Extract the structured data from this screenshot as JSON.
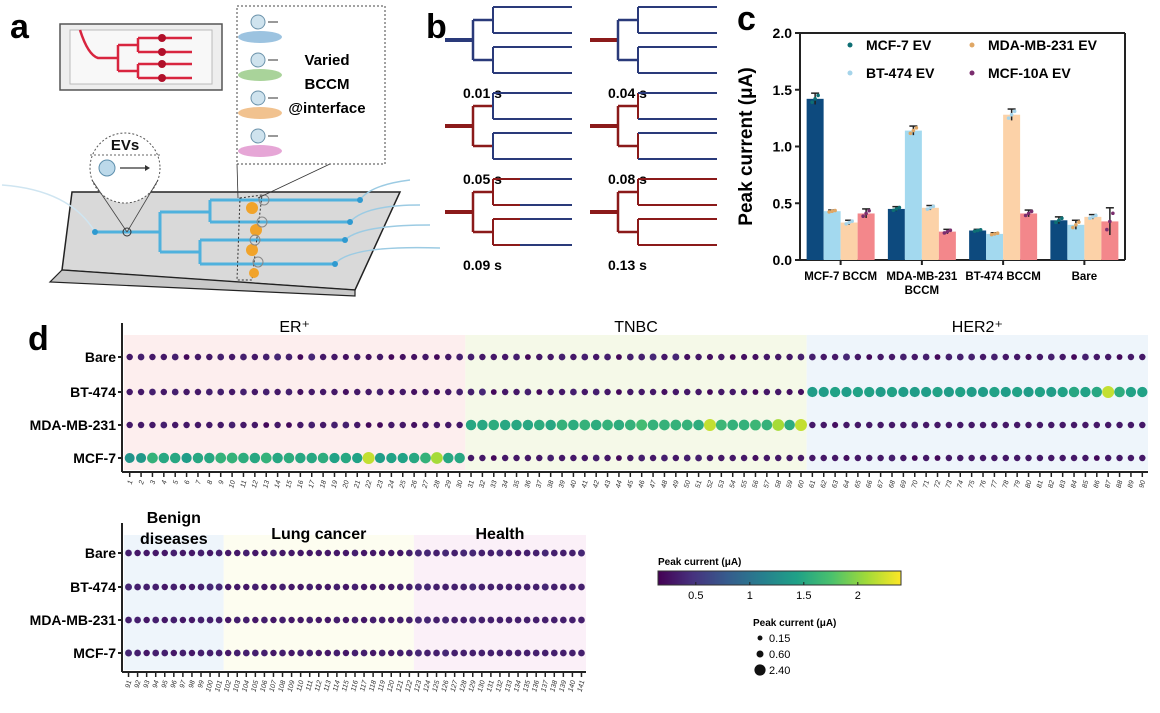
{
  "panel_labels": {
    "a": "a",
    "b": "b",
    "c": "c",
    "d": "d"
  },
  "panel_a": {
    "evs_label": "EVs",
    "interface_lines": [
      "Varied",
      "BCCM",
      "@interface"
    ],
    "interface_colors": [
      "#9cc3e0",
      "#a9d39a",
      "#f1c28f",
      "#e6a6d6"
    ]
  },
  "panel_b": {
    "frames": [
      {
        "time": "0.01 s",
        "filled_stage": 0
      },
      {
        "time": "0.04 s",
        "filled_stage": 1
      },
      {
        "time": "0.05 s",
        "filled_stage": 2
      },
      {
        "time": "0.08 s",
        "filled_stage": 3
      },
      {
        "time": "0.09 s",
        "filled_stage": 4
      },
      {
        "time": "0.13 s",
        "filled_stage": 5
      }
    ],
    "colors": {
      "empty": "#2a3a7a",
      "filled": "#8b1a1a"
    }
  },
  "chart_data": [
    {
      "type": "bar",
      "ylabel": "Peak current (μA)",
      "ylim": [
        0,
        2.0
      ],
      "yticks": [
        "0.0",
        "0.5",
        "1.0",
        "1.5",
        "2.0"
      ],
      "categories": [
        "MCF-7 BCCM",
        "MDA-MB-231|BCCM",
        "BT-474 BCCM",
        "Bare"
      ],
      "legend_placement": "top",
      "series": [
        {
          "name": "MCF-7 EV",
          "color": "#0d4a7e",
          "dot": "#0e6f74",
          "values": [
            1.42,
            0.45,
            0.26,
            0.35
          ],
          "err": [
            0.05,
            0.02,
            0.01,
            0.03
          ]
        },
        {
          "name": "MDA-MB-231 EV",
          "color": "#a3d9ef",
          "dot": "#e0a765",
          "values": [
            0.43,
            1.14,
            0.23,
            0.31
          ],
          "err": [
            0.01,
            0.04,
            0.01,
            0.04
          ]
        },
        {
          "name": "BT-474 EV",
          "color": "#fcd2a8",
          "dot": "#a5d4ea",
          "values": [
            0.33,
            0.46,
            1.28,
            0.38
          ],
          "err": [
            0.02,
            0.02,
            0.05,
            0.02
          ]
        },
        {
          "name": "MCF-10A EV",
          "color": "#f3878b",
          "dot": "#7a2d6e",
          "values": [
            0.41,
            0.25,
            0.41,
            0.34
          ],
          "err": [
            0.04,
            0.02,
            0.03,
            0.12
          ]
        }
      ]
    },
    {
      "type": "bubble-heatmap",
      "rows": [
        "Bare",
        "BT-474",
        "MDA-MB-231",
        "MCF-7"
      ],
      "colorbar": {
        "label": "Peak current (μA)",
        "ticks": [
          "0.5",
          "1",
          "1.5",
          "2"
        ],
        "range": [
          0.15,
          2.4
        ],
        "colormap": "viridis"
      },
      "size_legend": {
        "label": "Peak current (μA)",
        "values": [
          "0.15",
          "0.60",
          "2.40"
        ]
      },
      "panels": [
        {
          "samples": [
            1,
            90
          ],
          "groups": [
            {
              "label": "ER⁺",
              "range": [
                1,
                30
              ],
              "bg": "#fdeeee"
            },
            {
              "label": "TNBC",
              "range": [
                31,
                60
              ],
              "bg": "#f5f9e8"
            },
            {
              "label": "HER2⁺",
              "range": [
                61,
                90
              ],
              "bg": "#eef5fb"
            }
          ],
          "values": {
            "Bare": [
              0.3,
              0.35,
              0.3,
              0.3,
              0.35,
              0.2,
              0.3,
              0.3,
              0.35,
              0.3,
              0.35,
              0.3,
              0.35,
              0.4,
              0.35,
              0.2,
              0.4,
              0.3,
              0.3,
              0.25,
              0.3,
              0.25,
              0.3,
              0.2,
              0.25,
              0.25,
              0.3,
              0.2,
              0.3,
              0.35,
              0.35,
              0.3,
              0.3,
              0.3,
              0.35,
              0.2,
              0.3,
              0.3,
              0.35,
              0.3,
              0.35,
              0.3,
              0.35,
              0.2,
              0.35,
              0.35,
              0.4,
              0.3,
              0.4,
              0.25,
              0.3,
              0.25,
              0.3,
              0.2,
              0.25,
              0.25,
              0.3,
              0.3,
              0.3,
              0.35,
              0.35,
              0.3,
              0.3,
              0.4,
              0.3,
              0.2,
              0.3,
              0.3,
              0.35,
              0.3,
              0.35,
              0.2,
              0.35,
              0.35,
              0.35,
              0.3,
              0.35,
              0.3,
              0.3,
              0.25,
              0.3,
              0.35,
              0.3,
              0.2,
              0.35,
              0.3,
              0.3,
              0.2,
              0.3,
              0.3
            ],
            "BT-474": [
              0.3,
              0.3,
              0.35,
              0.3,
              0.35,
              0.3,
              0.3,
              0.35,
              0.35,
              0.3,
              0.35,
              0.3,
              0.35,
              0.3,
              0.35,
              0.25,
              0.3,
              0.3,
              0.3,
              0.25,
              0.3,
              0.3,
              0.35,
              0.25,
              0.3,
              0.25,
              0.3,
              0.25,
              0.3,
              0.35,
              0.35,
              0.4,
              0.2,
              0.3,
              0.3,
              0.35,
              0.2,
              0.3,
              0.3,
              0.35,
              0.3,
              0.35,
              0.3,
              0.2,
              0.3,
              0.3,
              0.3,
              0.25,
              0.3,
              0.3,
              0.3,
              0.2,
              0.3,
              0.3,
              0.3,
              0.2,
              0.3,
              0.3,
              0.25,
              0.25,
              1.4,
              1.4,
              1.45,
              1.4,
              1.45,
              1.45,
              1.4,
              1.45,
              1.4,
              1.4,
              1.4,
              1.45,
              1.4,
              1.45,
              1.4,
              1.4,
              1.45,
              1.4,
              1.45,
              1.4,
              1.45,
              1.4,
              1.45,
              1.5,
              1.45,
              1.5,
              2.2,
              1.55,
              1.45,
              1.45
            ],
            "MDA-MB-231": [
              0.3,
              0.3,
              0.3,
              0.35,
              0.3,
              0.3,
              0.3,
              0.3,
              0.3,
              0.35,
              0.3,
              0.3,
              0.2,
              0.3,
              0.2,
              0.3,
              0.35,
              0.3,
              0.35,
              0.35,
              0.3,
              0.2,
              0.2,
              0.3,
              0.3,
              0.25,
              0.3,
              0.3,
              0.3,
              0.3,
              1.5,
              1.5,
              1.55,
              1.5,
              1.5,
              1.5,
              1.55,
              1.5,
              1.6,
              1.55,
              1.6,
              1.55,
              1.6,
              1.55,
              1.6,
              1.7,
              1.6,
              1.6,
              1.6,
              1.6,
              1.55,
              2.2,
              1.65,
              1.6,
              1.6,
              1.65,
              1.6,
              2.1,
              1.55,
              2.2,
              0.3,
              0.3,
              0.25,
              0.3,
              0.3,
              0.3,
              0.3,
              0.3,
              0.3,
              0.35,
              0.3,
              0.3,
              0.3,
              0.3,
              0.3,
              0.3,
              0.3,
              0.3,
              0.3,
              0.3,
              0.3,
              0.3,
              0.3,
              0.3,
              0.3,
              0.3,
              0.3,
              0.3,
              0.3,
              0.3
            ],
            "MCF-7": [
              1.3,
              1.35,
              1.6,
              1.5,
              1.5,
              1.4,
              1.5,
              1.5,
              1.6,
              1.6,
              1.55,
              1.5,
              1.6,
              1.5,
              1.55,
              1.5,
              1.5,
              1.55,
              1.45,
              1.5,
              1.45,
              2.2,
              1.4,
              1.45,
              1.45,
              1.5,
              1.6,
              2.1,
              1.5,
              1.5,
              0.3,
              0.3,
              0.2,
              0.3,
              0.3,
              0.3,
              0.3,
              0.35,
              0.3,
              0.3,
              0.3,
              0.35,
              0.3,
              0.2,
              0.3,
              0.35,
              0.3,
              0.35,
              0.3,
              0.35,
              0.35,
              0.3,
              0.3,
              0.3,
              0.3,
              0.25,
              0.3,
              0.3,
              0.3,
              0.3,
              0.3,
              0.3,
              0.3,
              0.25,
              0.3,
              0.3,
              0.3,
              0.35,
              0.3,
              0.2,
              0.3,
              0.2,
              0.3,
              0.3,
              0.3,
              0.3,
              0.3,
              0.3,
              0.3,
              0.3,
              0.3,
              0.3,
              0.3,
              0.3,
              0.3,
              0.2,
              0.3,
              0.3,
              0.3,
              0.3
            ]
          }
        },
        {
          "samples": [
            91,
            141
          ],
          "groups": [
            {
              "label": "Benign|diseases",
              "range": [
                91,
                101
              ],
              "bg": "#eef5fb"
            },
            {
              "label": "Lung cancer",
              "range": [
                102,
                122
              ],
              "bg": "#fdfdf0"
            },
            {
              "label": "Health",
              "range": [
                123,
                141
              ],
              "bg": "#fbf0f8"
            }
          ],
          "values": {
            "Bare": [
              0.35,
              0.3,
              0.3,
              0.3,
              0.3,
              0.35,
              0.3,
              0.3,
              0.35,
              0.3,
              0.35,
              0.3,
              0.3,
              0.35,
              0.3,
              0.3,
              0.35,
              0.3,
              0.3,
              0.3,
              0.3,
              0.3,
              0.3,
              0.3,
              0.3,
              0.35,
              0.3,
              0.3,
              0.3,
              0.3,
              0.3,
              0.35,
              0.4,
              0.4,
              0.35,
              0.4,
              0.35,
              0.4,
              0.4,
              0.35,
              0.35,
              0.4,
              0.35,
              0.3,
              0.35,
              0.35,
              0.4,
              0.35,
              0.35,
              0.35,
              0.4
            ],
            "BT-474": [
              0.4,
              0.35,
              0.35,
              0.35,
              0.3,
              0.35,
              0.3,
              0.3,
              0.35,
              0.4,
              0.4,
              0.3,
              0.3,
              0.3,
              0.35,
              0.3,
              0.3,
              0.35,
              0.3,
              0.3,
              0.35,
              0.3,
              0.3,
              0.35,
              0.3,
              0.35,
              0.3,
              0.3,
              0.3,
              0.3,
              0.35,
              0.35,
              0.4,
              0.4,
              0.35,
              0.35,
              0.35,
              0.35,
              0.4,
              0.35,
              0.35,
              0.35,
              0.35,
              0.35,
              0.35,
              0.35,
              0.4,
              0.35,
              0.35,
              0.35,
              0.35
            ],
            "MDA-MB-231": [
              0.35,
              0.35,
              0.3,
              0.35,
              0.3,
              0.35,
              0.3,
              0.3,
              0.35,
              0.35,
              0.35,
              0.3,
              0.35,
              0.35,
              0.3,
              0.35,
              0.3,
              0.35,
              0.3,
              0.3,
              0.35,
              0.3,
              0.3,
              0.35,
              0.3,
              0.35,
              0.3,
              0.35,
              0.35,
              0.3,
              0.35,
              0.35,
              0.4,
              0.4,
              0.35,
              0.4,
              0.35,
              0.35,
              0.4,
              0.35,
              0.35,
              0.35,
              0.35,
              0.35,
              0.35,
              0.35,
              0.35,
              0.35,
              0.35,
              0.35,
              0.35
            ],
            "MCF-7": [
              0.4,
              0.35,
              0.3,
              0.35,
              0.35,
              0.3,
              0.35,
              0.3,
              0.35,
              0.35,
              0.35,
              0.3,
              0.35,
              0.35,
              0.35,
              0.35,
              0.3,
              0.35,
              0.3,
              0.35,
              0.35,
              0.3,
              0.3,
              0.35,
              0.3,
              0.35,
              0.35,
              0.3,
              0.35,
              0.3,
              0.35,
              0.35,
              0.4,
              0.35,
              0.35,
              0.4,
              0.35,
              0.35,
              0.35,
              0.35,
              0.35,
              0.35,
              0.35,
              0.35,
              0.35,
              0.35,
              0.35,
              0.35,
              0.35,
              0.35,
              0.35
            ]
          }
        }
      ]
    }
  ]
}
